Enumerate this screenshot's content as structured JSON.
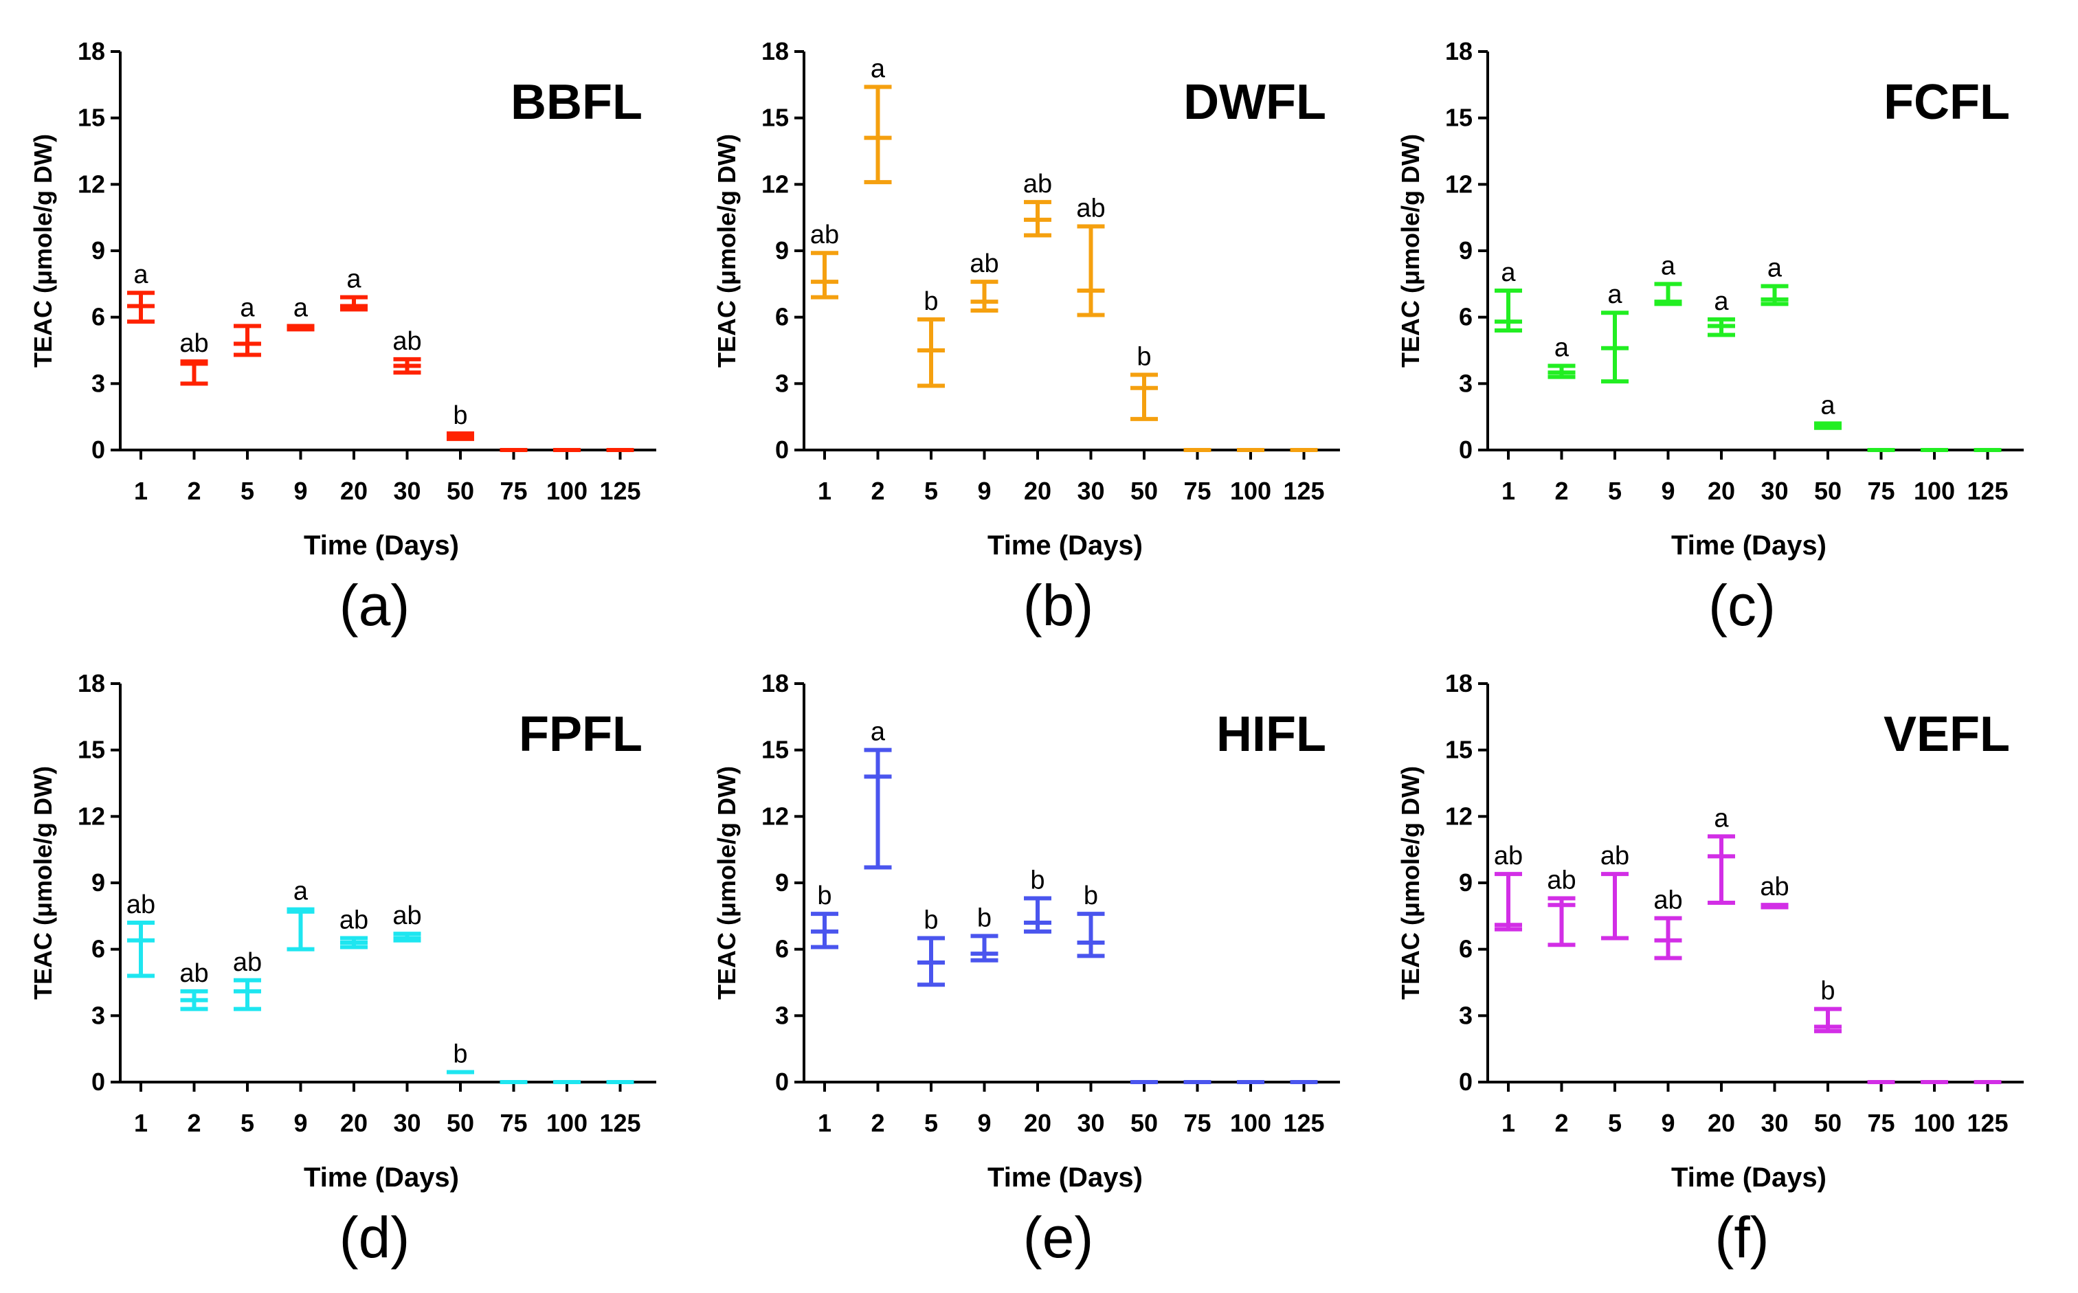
{
  "chart_data": [
    {
      "type": "errorbar",
      "panel_label": "(a)",
      "title": "BBFL",
      "color": "#ff2200",
      "xlabel": "Time (Days)",
      "ylabel": "TEAC (μmole/g DW)",
      "ylim": [
        0,
        18
      ],
      "yticks": [
        "0",
        "3",
        "6",
        "9",
        "12",
        "15",
        "18"
      ],
      "categories": [
        "1",
        "2",
        "5",
        "9",
        "20",
        "30",
        "50",
        "75",
        "100",
        "125"
      ],
      "mean": [
        6.5,
        3.9,
        4.8,
        5.55,
        6.5,
        3.8,
        0.65,
        0,
        0,
        0
      ],
      "low": [
        5.8,
        3.0,
        4.3,
        5.45,
        6.35,
        3.5,
        0.5,
        0,
        0,
        0
      ],
      "high": [
        7.1,
        4.0,
        5.6,
        5.6,
        6.9,
        4.1,
        0.75,
        0,
        0,
        0
      ],
      "letters": [
        "a",
        "ab",
        "a",
        "a",
        "a",
        "ab",
        "b",
        "",
        "",
        ""
      ]
    },
    {
      "type": "errorbar",
      "panel_label": "(b)",
      "title": "DWFL",
      "color": "#f5a00f",
      "xlabel": "Time (Days)",
      "ylabel": "TEAC (μmole/g DW)",
      "ylim": [
        0,
        18
      ],
      "yticks": [
        "0",
        "3",
        "6",
        "9",
        "12",
        "15",
        "18"
      ],
      "categories": [
        "1",
        "2",
        "5",
        "9",
        "20",
        "30",
        "50",
        "75",
        "100",
        "125"
      ],
      "mean": [
        7.6,
        14.1,
        4.5,
        6.7,
        10.4,
        7.2,
        2.8,
        0,
        0,
        0
      ],
      "low": [
        6.9,
        12.1,
        2.9,
        6.3,
        9.7,
        6.1,
        1.4,
        0,
        0,
        0
      ],
      "high": [
        8.9,
        16.4,
        5.9,
        7.6,
        11.2,
        10.1,
        3.4,
        0,
        0,
        0
      ],
      "letters": [
        "ab",
        "a",
        "b",
        "ab",
        "ab",
        "ab",
        "b",
        "",
        "",
        ""
      ]
    },
    {
      "type": "errorbar",
      "panel_label": "(c)",
      "title": "FCFL",
      "color": "#22ee22",
      "xlabel": "Time (Days)",
      "ylabel": "TEAC (μmole/g DW)",
      "ylim": [
        0,
        18
      ],
      "yticks": [
        "0",
        "3",
        "6",
        "9",
        "12",
        "15",
        "18"
      ],
      "categories": [
        "1",
        "2",
        "5",
        "9",
        "20",
        "30",
        "50",
        "75",
        "100",
        "125"
      ],
      "mean": [
        5.8,
        3.5,
        4.6,
        6.7,
        5.6,
        6.8,
        1.1,
        0,
        0,
        0
      ],
      "low": [
        5.4,
        3.3,
        3.1,
        6.6,
        5.2,
        6.6,
        1.0,
        0,
        0,
        0
      ],
      "high": [
        7.2,
        3.8,
        6.2,
        7.5,
        5.9,
        7.4,
        1.2,
        0,
        0,
        0
      ],
      "letters": [
        "a",
        "a",
        "a",
        "a",
        "a",
        "a",
        "a",
        "",
        "",
        ""
      ]
    },
    {
      "type": "errorbar",
      "panel_label": "(d)",
      "title": "FPFL",
      "color": "#1ee6f0",
      "xlabel": "Time (Days)",
      "ylabel": "TEAC (μmole/g DW)",
      "ylim": [
        0,
        18
      ],
      "yticks": [
        "0",
        "3",
        "6",
        "9",
        "12",
        "15",
        "18"
      ],
      "categories": [
        "1",
        "2",
        "5",
        "9",
        "20",
        "30",
        "50",
        "75",
        "100",
        "125"
      ],
      "mean": [
        6.4,
        3.7,
        4.1,
        7.7,
        6.3,
        6.5,
        0.45,
        0,
        0,
        0
      ],
      "low": [
        4.8,
        3.3,
        3.3,
        6.0,
        6.1,
        6.4,
        0.45,
        0,
        0,
        0
      ],
      "high": [
        7.2,
        4.1,
        4.6,
        7.8,
        6.5,
        6.7,
        0.45,
        0,
        0,
        0
      ],
      "letters": [
        "ab",
        "ab",
        "ab",
        "a",
        "ab",
        "ab",
        "b",
        "",
        "",
        ""
      ]
    },
    {
      "type": "errorbar",
      "panel_label": "(e)",
      "title": "HIFL",
      "color": "#4a55ee",
      "xlabel": "Time (Days)",
      "ylabel": "TEAC (μmole/g DW)",
      "ylim": [
        0,
        18
      ],
      "yticks": [
        "0",
        "3",
        "6",
        "9",
        "12",
        "15",
        "18"
      ],
      "categories": [
        "1",
        "2",
        "5",
        "9",
        "20",
        "30",
        "50",
        "75",
        "100",
        "125"
      ],
      "mean": [
        6.8,
        13.8,
        5.4,
        5.8,
        7.2,
        6.3,
        0,
        0,
        0,
        0
      ],
      "low": [
        6.1,
        9.7,
        4.4,
        5.5,
        6.8,
        5.7,
        0,
        0,
        0,
        0
      ],
      "high": [
        7.6,
        15.0,
        6.5,
        6.6,
        8.3,
        7.6,
        0,
        0,
        0,
        0
      ],
      "letters": [
        "b",
        "a",
        "b",
        "b",
        "b",
        "b",
        "",
        "",
        "",
        ""
      ]
    },
    {
      "type": "errorbar",
      "panel_label": "(f)",
      "title": "VEFL",
      "color": "#d22ee6",
      "xlabel": "Time (Days)",
      "ylabel": "TEAC (μmole/g DW)",
      "ylim": [
        0,
        18
      ],
      "yticks": [
        "0",
        "3",
        "6",
        "9",
        "12",
        "15",
        "18"
      ],
      "categories": [
        "1",
        "2",
        "5",
        "9",
        "20",
        "30",
        "50",
        "75",
        "100",
        "125"
      ],
      "mean": [
        7.1,
        8.0,
        6.5,
        6.4,
        10.2,
        8.0,
        2.5,
        0,
        0,
        0
      ],
      "low": [
        6.9,
        6.2,
        6.5,
        5.6,
        8.1,
        7.9,
        2.3,
        0,
        0,
        0
      ],
      "high": [
        9.4,
        8.3,
        9.4,
        7.4,
        11.1,
        8.0,
        3.3,
        0,
        0,
        0
      ],
      "letters": [
        "ab",
        "ab",
        "ab",
        "ab",
        "a",
        "ab",
        "b",
        "",
        "",
        ""
      ]
    }
  ]
}
